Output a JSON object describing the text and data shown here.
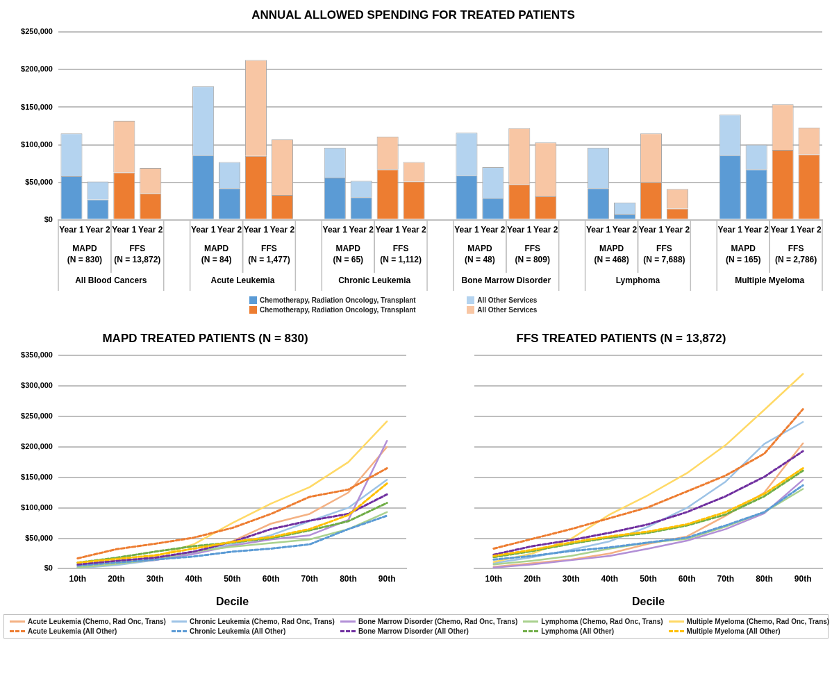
{
  "chart_data": [
    {
      "type": "bar",
      "title": "ANNUAL ALLOWED SPENDING FOR TREATED PATIENTS",
      "stacked": true,
      "grid": "y",
      "legend": "bottom",
      "categories": [
        "Year 1",
        "Year 2",
        "Year 1",
        "Year 2",
        null,
        "Year 1",
        "Year 2",
        "Year 1",
        "Year 2",
        null,
        "Year 1",
        "Year 2",
        "Year 1",
        "Year 2",
        null,
        "Year 1",
        "Year 2",
        "Year 1",
        "Year 2",
        null,
        "Year 1",
        "Year 2",
        "Year 1",
        "Year 2",
        null,
        "Year 1",
        "Year 2",
        "Year 1",
        "Year 2"
      ],
      "ylim": [
        0,
        250000
      ],
      "yticks": [
        {
          "value": 0,
          "label": "$0"
        },
        {
          "value": 50000,
          "label": "$50,000"
        },
        {
          "value": 100000,
          "label": "$100,000"
        },
        {
          "value": 150000,
          "label": "$150,000"
        },
        {
          "value": 200000,
          "label": "$200,000"
        },
        {
          "value": 250000,
          "label": "$250,000"
        }
      ],
      "series": [
        {
          "name": "Chemotherapy, Radiation Oncology, Transplant",
          "color": "#5b9bd5",
          "values": [
            58000,
            27000,
            null,
            null,
            null,
            86000,
            42000,
            null,
            null,
            null,
            56000,
            30000,
            null,
            null,
            null,
            59000,
            29000,
            null,
            null,
            null,
            42000,
            7000,
            null,
            null,
            null,
            86000,
            67000,
            null,
            null
          ]
        },
        {
          "name": "All Other Services",
          "color": "#b4d3ef",
          "values": [
            57000,
            24000,
            null,
            null,
            null,
            92000,
            35000,
            null,
            null,
            null,
            40000,
            22000,
            null,
            null,
            null,
            57000,
            41000,
            null,
            null,
            null,
            54000,
            16000,
            null,
            null,
            null,
            54000,
            33000,
            null,
            null
          ]
        },
        {
          "name": "Chemotherapy, Radiation Oncology, Transplant",
          "color": "#ed7d31",
          "values": [
            null,
            null,
            63000,
            35000,
            null,
            null,
            null,
            85000,
            33000,
            null,
            null,
            null,
            67000,
            51000,
            null,
            null,
            null,
            47000,
            31000,
            null,
            null,
            null,
            50000,
            15000,
            null,
            null,
            null,
            93000,
            87000
          ]
        },
        {
          "name": "All Other Services",
          "color": "#f8c6a4",
          "values": [
            null,
            null,
            69000,
            34000,
            null,
            null,
            null,
            128000,
            74000,
            null,
            null,
            null,
            44000,
            26000,
            null,
            null,
            null,
            75000,
            72000,
            null,
            null,
            null,
            65000,
            26000,
            null,
            null,
            null,
            61000,
            36000
          ]
        }
      ],
      "annotations": [
        "MAPD\n(N = 830)",
        "FFS\n(N = 13,872)",
        "MAPD\n(N = 84)",
        "FFS\n(N = 1,477)",
        "MAPD\n(N = 65)",
        "FFS\n(N = 1,112)",
        "MAPD\n(N = 48)",
        "FFS\n(N = 809)",
        "MAPD\n(N = 468)",
        "FFS\n(N = 7,688)",
        "MAPD\n(N = 165)",
        "FFS\n(N = 2,786)",
        "All Blood Cancers",
        "Acute Leukemia",
        "Chronic Leukemia",
        "Bone Marrow Disorder",
        "Lymphoma",
        "Multiple Myeloma"
      ]
    },
    {
      "type": "line",
      "title": "MAPD TREATED PATIENTS (N = 830)",
      "xlabel": "Decile",
      "grid": "y",
      "legend": "bottom",
      "marker": "none",
      "categories": [
        "10th",
        "20th",
        "30th",
        "40th",
        "50th",
        "60th",
        "70th",
        "80th",
        "90th"
      ],
      "ylim": [
        0,
        350000
      ],
      "yticks": [
        {
          "value": 0,
          "label": "$0"
        },
        {
          "value": 50000,
          "label": "$50,000"
        },
        {
          "value": 100000,
          "label": "$100,000"
        },
        {
          "value": 150000,
          "label": "$150,000"
        },
        {
          "value": 200000,
          "label": "$200,000"
        },
        {
          "value": 250000,
          "label": "$250,000"
        },
        {
          "value": 300000,
          "label": "$300,000"
        },
        {
          "value": 350000,
          "label": "$350,000"
        }
      ],
      "series": [
        {
          "name": "Acute Leukemia (Chemo, Rad Onc, Trans)",
          "color": "#f4b183",
          "line_style": "solid",
          "values": [
            3000,
            8000,
            15000,
            25000,
            45000,
            74000,
            90000,
            125000,
            200000
          ]
        },
        {
          "name": "Chronic Leukemia (Chemo, Rad Onc, Trans)",
          "color": "#9dc3e6",
          "line_style": "solid",
          "values": [
            1000,
            6000,
            14000,
            27000,
            40000,
            55000,
            78000,
            100000,
            146000
          ]
        },
        {
          "name": "Bone Marrow Disorder (Chemo, Rad Onc, Trans)",
          "color": "#b28fd6",
          "line_style": "solid",
          "values": [
            2000,
            9000,
            14000,
            24000,
            38000,
            48000,
            55000,
            80000,
            210000
          ]
        },
        {
          "name": "Lymphoma (Chemo, Rad Onc, Trans)",
          "color": "#a9d18e",
          "line_style": "solid",
          "values": [
            2000,
            8000,
            15000,
            28000,
            36000,
            42000,
            48000,
            65000,
            93000
          ]
        },
        {
          "name": "Multiple Myeloma (Chemo, Rad Onc, Trans)",
          "color": "#ffd966",
          "line_style": "solid",
          "values": [
            5000,
            10000,
            20000,
            40000,
            75000,
            107000,
            134000,
            175000,
            242000
          ]
        },
        {
          "name": "Acute Leukemia (All Other)",
          "color": "#ed7d31",
          "line_style": "dashed",
          "values": [
            17000,
            32000,
            41000,
            51000,
            67000,
            90000,
            118000,
            130000,
            165000
          ]
        },
        {
          "name": "Chronic Leukemia (All Other)",
          "color": "#5b9bd5",
          "line_style": "dashed",
          "values": [
            5000,
            10000,
            15000,
            20000,
            28000,
            33000,
            40000,
            65000,
            87000
          ]
        },
        {
          "name": "Bone Marrow Disorder (All Other)",
          "color": "#7030a0",
          "line_style": "dashed",
          "values": [
            7000,
            13000,
            18000,
            28000,
            44000,
            65000,
            79000,
            90000,
            122000
          ]
        },
        {
          "name": "Lymphoma (All Other)",
          "color": "#70ad47",
          "line_style": "dashed",
          "values": [
            10000,
            18000,
            28000,
            37000,
            43000,
            50000,
            63000,
            78000,
            108000
          ]
        },
        {
          "name": "Multiple Myeloma (All Other)",
          "color": "#ffc000",
          "line_style": "dashed",
          "values": [
            10000,
            16000,
            22000,
            33000,
            44000,
            52000,
            65000,
            88000,
            140000
          ]
        }
      ]
    },
    {
      "type": "line",
      "title": "FFS TREATED PATIENTS (N = 13,872)",
      "xlabel": "Decile",
      "grid": "y",
      "legend": "bottom",
      "marker": "none",
      "tick_labels": "x",
      "categories": [
        "10th",
        "20th",
        "30th",
        "40th",
        "50th",
        "60th",
        "70th",
        "80th",
        "90th"
      ],
      "ylim": [
        0,
        350000
      ],
      "yticks": [
        {
          "value": 0,
          "label": "$0"
        },
        {
          "value": 50000,
          "label": "$50,000"
        },
        {
          "value": 100000,
          "label": "$100,000"
        },
        {
          "value": 150000,
          "label": "$150,000"
        },
        {
          "value": 200000,
          "label": "$200,000"
        },
        {
          "value": 250000,
          "label": "$250,000"
        },
        {
          "value": 300000,
          "label": "$300,000"
        },
        {
          "value": 350000,
          "label": "$350,000"
        }
      ],
      "series": [
        {
          "name": "Acute Leukemia (Chemo, Rad Onc, Trans)",
          "color": "#f4b183",
          "line_style": "solid",
          "values": [
            3000,
            9000,
            15000,
            25000,
            41000,
            53000,
            87000,
            125000,
            206000
          ]
        },
        {
          "name": "Chronic Leukemia (Chemo, Rad Onc, Trans)",
          "color": "#9dc3e6",
          "line_style": "solid",
          "values": [
            9000,
            19000,
            31000,
            45000,
            69000,
            100000,
            143000,
            205000,
            241000
          ]
        },
        {
          "name": "Bone Marrow Disorder (Chemo, Rad Onc, Trans)",
          "color": "#b28fd6",
          "line_style": "solid",
          "values": [
            2000,
            7000,
            14000,
            21000,
            33000,
            46000,
            65000,
            91000,
            146000
          ]
        },
        {
          "name": "Lymphoma (Chemo, Rad Onc, Trans)",
          "color": "#a9d18e",
          "line_style": "solid",
          "values": [
            7000,
            13000,
            21000,
            33000,
            43000,
            49000,
            69000,
            93000,
            131000
          ]
        },
        {
          "name": "Multiple Myeloma (Chemo, Rad Onc, Trans)",
          "color": "#ffd966",
          "line_style": "solid",
          "values": [
            11000,
            25000,
            49000,
            89000,
            121000,
            157000,
            203000,
            261000,
            320000
          ]
        },
        {
          "name": "Acute Leukemia (All Other)",
          "color": "#ed7d31",
          "line_style": "dashed",
          "values": [
            33000,
            49000,
            65000,
            83000,
            101000,
            127000,
            153000,
            189000,
            262000
          ]
        },
        {
          "name": "Chronic Leukemia (All Other)",
          "color": "#5b9bd5",
          "line_style": "dashed",
          "values": [
            15000,
            21000,
            29000,
            35000,
            43000,
            51000,
            71000,
            93000,
            137000
          ]
        },
        {
          "name": "Bone Marrow Disorder (All Other)",
          "color": "#7030a0",
          "line_style": "dashed",
          "values": [
            23000,
            37000,
            47000,
            59000,
            73000,
            93000,
            119000,
            151000,
            193000
          ]
        },
        {
          "name": "Lymphoma (All Other)",
          "color": "#70ad47",
          "line_style": "dashed",
          "values": [
            19000,
            29000,
            41000,
            51000,
            59000,
            71000,
            89000,
            119000,
            161000
          ]
        },
        {
          "name": "Multiple Myeloma (All Other)",
          "color": "#ffc000",
          "line_style": "dashed",
          "values": [
            21000,
            31000,
            43000,
            53000,
            61000,
            73000,
            93000,
            123000,
            165000
          ]
        }
      ]
    }
  ]
}
